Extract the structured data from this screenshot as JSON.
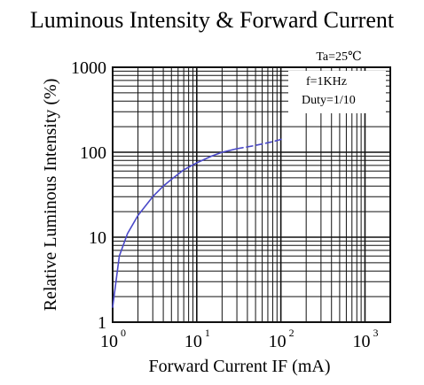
{
  "chart_data": {
    "type": "line",
    "title": "Luminous Intensity & Forward Current",
    "xlabel": "Forward Current IF (mA)",
    "ylabel": "Relative Luminous Intensity (%)",
    "x_scale": "log",
    "y_scale": "log",
    "xlim": [
      1,
      2000
    ],
    "ylim": [
      1,
      1000
    ],
    "x_ticks": [
      {
        "base": "10",
        "exp": "0",
        "value": 1
      },
      {
        "base": "10",
        "exp": "1",
        "value": 10
      },
      {
        "base": "10",
        "exp": "2",
        "value": 100
      },
      {
        "base": "10",
        "exp": "3",
        "value": 1000
      }
    ],
    "y_ticks": [
      {
        "label": "1",
        "value": 1
      },
      {
        "label": "10",
        "value": 10
      },
      {
        "label": "100",
        "value": 100
      },
      {
        "label": "1000",
        "value": 1000
      }
    ],
    "grid": true,
    "annotations": [
      "Ta=25℃",
      "f=1KHz",
      "Duty=1/10"
    ],
    "series": [
      {
        "color": "#4a49c8",
        "x": [
          1,
          1.2,
          1.5,
          2,
          3,
          4,
          5,
          7,
          10,
          15,
          20,
          30
        ],
        "y": [
          1.5,
          6,
          11,
          18,
          30,
          40,
          48,
          62,
          75,
          90,
          100,
          110
        ]
      },
      {
        "color": "#4a49c8",
        "dashed": true,
        "x": [
          30,
          45,
          60,
          80,
          110
        ],
        "y": [
          110,
          118,
          125,
          133,
          145
        ]
      }
    ]
  }
}
